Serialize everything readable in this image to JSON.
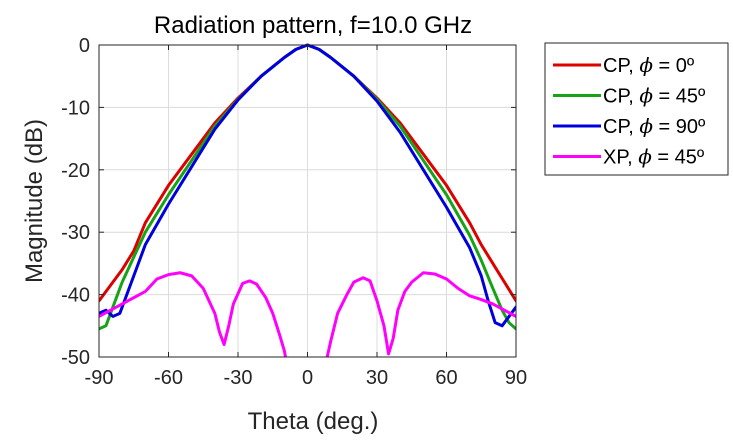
{
  "chart_data": {
    "type": "line",
    "title": "Radiation pattern, f=10.0 GHz",
    "xlabel": "Theta (deg.)",
    "ylabel": "Magnitude (dB)",
    "xlim": [
      -90,
      90
    ],
    "ylim": [
      -50,
      0
    ],
    "xticks": [
      -90,
      -60,
      -30,
      0,
      30,
      60,
      90
    ],
    "yticks": [
      0,
      -10,
      -20,
      -30,
      -40,
      -50
    ],
    "grid": true,
    "legend_position": "outside-right-top",
    "series": [
      {
        "name": "CP, ϕ = 0º",
        "legend_prefix": "CP, ",
        "legend_symbol": "ϕ",
        "legend_suffix": " = 0º",
        "color": "#dd0000",
        "points": [
          [
            -90,
            -41
          ],
          [
            -85,
            -38.5
          ],
          [
            -80,
            -36
          ],
          [
            -75,
            -33
          ],
          [
            -70,
            -28.5
          ],
          [
            -60,
            -22.5
          ],
          [
            -50,
            -17.5
          ],
          [
            -40,
            -12.5
          ],
          [
            -30,
            -8.5
          ],
          [
            -20,
            -5
          ],
          [
            -10,
            -2
          ],
          [
            -5,
            -0.7
          ],
          [
            0,
            0
          ],
          [
            5,
            -0.7
          ],
          [
            10,
            -2
          ],
          [
            20,
            -5
          ],
          [
            30,
            -8.5
          ],
          [
            40,
            -12.5
          ],
          [
            50,
            -17.5
          ],
          [
            60,
            -22.5
          ],
          [
            70,
            -28.5
          ],
          [
            75,
            -32
          ],
          [
            80,
            -35
          ],
          [
            85,
            -38
          ],
          [
            90,
            -41
          ]
        ]
      },
      {
        "name": "CP, ϕ = 45º",
        "legend_prefix": "CP, ",
        "legend_symbol": "ϕ",
        "legend_suffix": " = 45º",
        "color": "#17a317",
        "points": [
          [
            -90,
            -45.5
          ],
          [
            -87,
            -45
          ],
          [
            -84,
            -42
          ],
          [
            -80,
            -38
          ],
          [
            -75,
            -34
          ],
          [
            -70,
            -30
          ],
          [
            -60,
            -24
          ],
          [
            -50,
            -18.5
          ],
          [
            -40,
            -13
          ],
          [
            -30,
            -8.7
          ],
          [
            -20,
            -5
          ],
          [
            -10,
            -2
          ],
          [
            -5,
            -0.7
          ],
          [
            0,
            0
          ],
          [
            5,
            -0.7
          ],
          [
            10,
            -2
          ],
          [
            20,
            -5
          ],
          [
            30,
            -8.7
          ],
          [
            40,
            -13
          ],
          [
            50,
            -18.5
          ],
          [
            60,
            -24
          ],
          [
            70,
            -30.5
          ],
          [
            75,
            -34.5
          ],
          [
            80,
            -39
          ],
          [
            84,
            -42.5
          ],
          [
            87,
            -44.5
          ],
          [
            90,
            -45.5
          ]
        ]
      },
      {
        "name": "CP, ϕ = 90º",
        "legend_prefix": "CP, ",
        "legend_symbol": "ϕ",
        "legend_suffix": " = 90º",
        "color": "#0000dd",
        "points": [
          [
            -90,
            -43
          ],
          [
            -87,
            -42.5
          ],
          [
            -84,
            -43.5
          ],
          [
            -81,
            -43
          ],
          [
            -78,
            -40
          ],
          [
            -75,
            -37
          ],
          [
            -70,
            -32
          ],
          [
            -60,
            -25.5
          ],
          [
            -50,
            -19.5
          ],
          [
            -40,
            -13.5
          ],
          [
            -30,
            -8.8
          ],
          [
            -20,
            -5
          ],
          [
            -10,
            -2
          ],
          [
            -5,
            -0.7
          ],
          [
            0,
            0
          ],
          [
            5,
            -0.7
          ],
          [
            10,
            -2
          ],
          [
            20,
            -5
          ],
          [
            30,
            -9
          ],
          [
            40,
            -14
          ],
          [
            50,
            -20
          ],
          [
            60,
            -26
          ],
          [
            70,
            -32.5
          ],
          [
            75,
            -37
          ],
          [
            78,
            -41
          ],
          [
            81,
            -44.5
          ],
          [
            84,
            -45
          ],
          [
            87,
            -43.5
          ],
          [
            90,
            -42
          ]
        ]
      },
      {
        "name": "XP, ϕ = 45º",
        "legend_prefix": "XP, ",
        "legend_symbol": "ϕ",
        "legend_suffix": " = 45º",
        "color": "#ff00ff",
        "points": [
          [
            -90,
            -43.5
          ],
          [
            -85,
            -42.5
          ],
          [
            -80,
            -41.5
          ],
          [
            -75,
            -40.5
          ],
          [
            -70,
            -39.5
          ],
          [
            -65,
            -37.5
          ],
          [
            -60,
            -36.8
          ],
          [
            -55,
            -36.5
          ],
          [
            -50,
            -37
          ],
          [
            -45,
            -39
          ],
          [
            -40,
            -43
          ],
          [
            -38,
            -46
          ],
          [
            -36,
            -48
          ],
          [
            -34,
            -45
          ],
          [
            -32,
            -41.5
          ],
          [
            -28,
            -38.2
          ],
          [
            -25,
            -37.8
          ],
          [
            -22,
            -38.3
          ],
          [
            -18,
            -40.5
          ],
          [
            -15,
            -43
          ],
          [
            -12,
            -46.5
          ],
          [
            -10,
            -49
          ],
          [
            -9.5,
            -50
          ]
        ]
      },
      {
        "name": "",
        "color": "#ff00ff",
        "points": [
          [
            8.5,
            -50
          ],
          [
            10,
            -47.5
          ],
          [
            13,
            -43
          ],
          [
            17,
            -40
          ],
          [
            20,
            -38
          ],
          [
            24,
            -37.3
          ],
          [
            27,
            -37.8
          ],
          [
            30,
            -41
          ],
          [
            33,
            -45
          ],
          [
            35,
            -49.5
          ],
          [
            37,
            -47
          ],
          [
            39,
            -42.5
          ],
          [
            42,
            -39.5
          ],
          [
            45,
            -38
          ],
          [
            50,
            -36.5
          ],
          [
            55,
            -36.7
          ],
          [
            60,
            -37.5
          ],
          [
            65,
            -39
          ],
          [
            70,
            -40.2
          ],
          [
            75,
            -40.8
          ],
          [
            80,
            -41.5
          ],
          [
            85,
            -42.5
          ],
          [
            90,
            -43.5
          ]
        ]
      }
    ]
  }
}
